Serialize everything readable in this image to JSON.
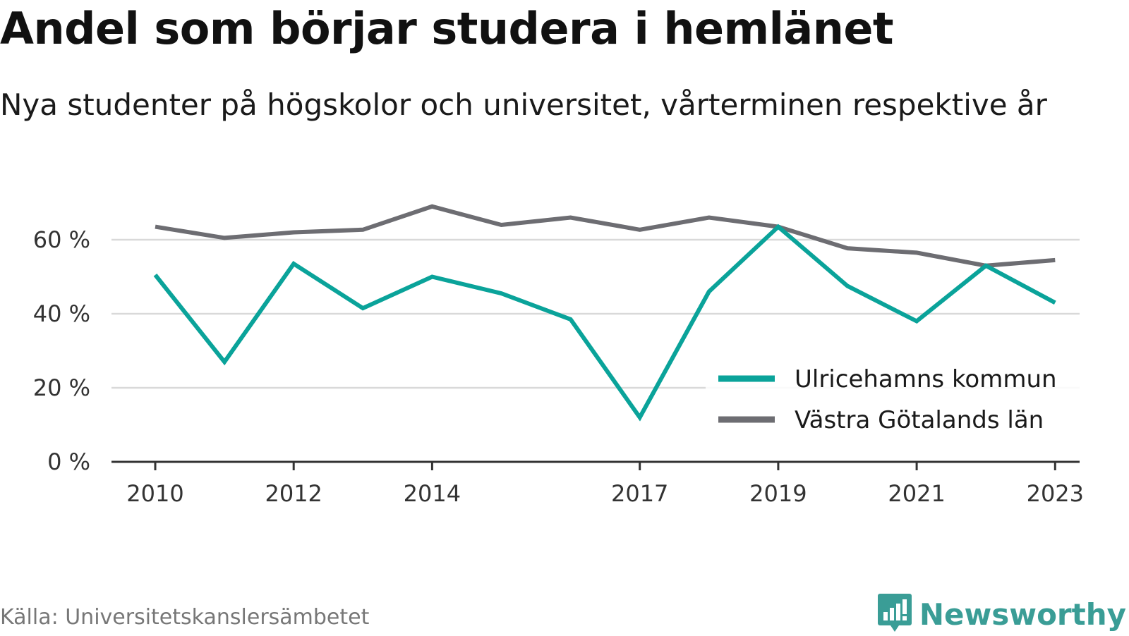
{
  "header": {
    "title": "Andel som börjar studera i hemlänet",
    "subtitle": "Nya studenter på högskolor och universitet, vårterminen respektive år"
  },
  "footer": {
    "source": "Källa: Universitetskanslersämbetet",
    "brand": "Newsworthy",
    "brand_icon": "chart-bubble-icon"
  },
  "colors": {
    "series_1": "#0aa39a",
    "series_2": "#6d6d72",
    "grid": "#d9d9d9",
    "axis": "#333333",
    "brand": "#3a9d96"
  },
  "chart_data": {
    "type": "line",
    "title": "Andel som börjar studera i hemlänet",
    "subtitle": "Nya studenter på högskolor och universitet, vårterminen respektive år",
    "x": [
      2010,
      2011,
      2012,
      2013,
      2014,
      2015,
      2016,
      2017,
      2018,
      2019,
      2020,
      2021,
      2022,
      2023
    ],
    "x_tick_labels": [
      "2010",
      "2012",
      "2014",
      "2017",
      "2019",
      "2021",
      "2023"
    ],
    "y_ticks": [
      0,
      20,
      40,
      60
    ],
    "y_tick_labels": [
      "0 %",
      "20 %",
      "40 %",
      "60 %"
    ],
    "ylim": [
      0,
      70
    ],
    "grid": true,
    "legend_position": "bottom-right",
    "series": [
      {
        "name": "Ulricehamns kommun",
        "values": [
          50.5,
          27,
          53.5,
          41.5,
          50,
          45.5,
          38.5,
          12,
          46,
          63.5,
          47.5,
          38,
          53,
          43
        ]
      },
      {
        "name": "Västra Götalands län",
        "values": [
          63.5,
          60.5,
          62,
          62.7,
          69,
          64,
          66,
          62.7,
          66,
          63.5,
          57.7,
          56.5,
          53,
          54.5
        ]
      }
    ]
  }
}
